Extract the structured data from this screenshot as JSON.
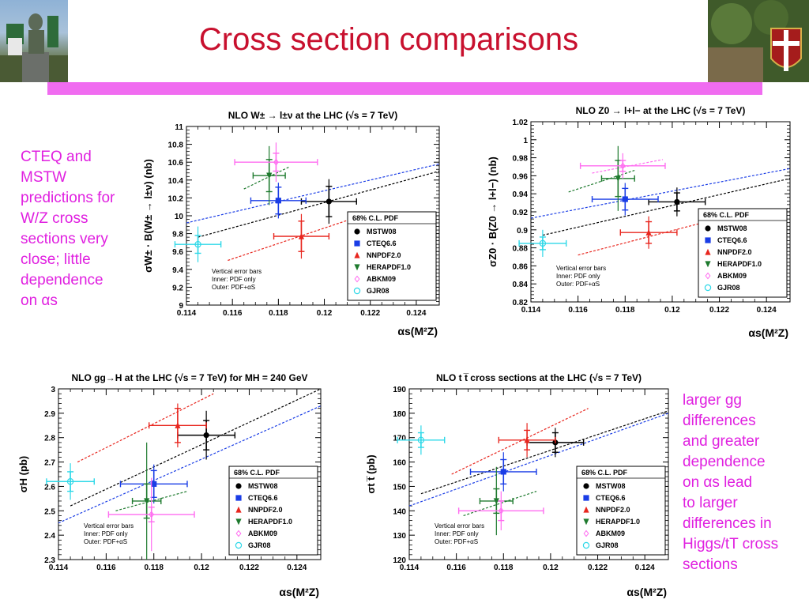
{
  "slide": {
    "title": "Cross section comparisons",
    "left_note": [
      "CTEQ and",
      "MSTW",
      "predictions for",
      "W/Z cross",
      "sections very",
      "close; little",
      "dependence",
      "on αs"
    ],
    "right_note": [
      "larger gg",
      "differences",
      "and greater",
      "dependence",
      "on αs lead",
      "to larger",
      "differences in",
      "Higgs/tT cross",
      "sections"
    ]
  },
  "colors": {
    "title": "#c8102e",
    "bar": "#f06cf0",
    "note": "#e020e0",
    "MSTW08": "#000000",
    "CTEQ6.6": "#1a3de6",
    "NNPDF2.0": "#e8261e",
    "HERAPDF1.0": "#1e7a2e",
    "ABKM09": "#ff6cf0",
    "GJR08": "#2ed8e8"
  },
  "chart_data": [
    {
      "type": "scatter",
      "title": "NLO W± → l±ν at the LHC (√s = 7 TeV)",
      "ylabel": "σW± · B(W± → l±ν)  (nb)",
      "xlabel": "αs(M²Z)",
      "xlim": [
        0.114,
        0.125
      ],
      "ylim": [
        9.0,
        11.0
      ],
      "xticks": [
        0.114,
        0.116,
        0.118,
        0.12,
        0.122,
        0.124
      ],
      "yticks": [
        9,
        9.2,
        9.4,
        9.6,
        9.8,
        10,
        10.2,
        10.4,
        10.6,
        10.8,
        11
      ],
      "legend_title": "68% C.L. PDF",
      "legend_position": "bottom-right",
      "note": [
        "Vertical error bars",
        "Inner: PDF only",
        "Outer: PDF+αS"
      ],
      "series": [
        {
          "name": "MSTW08",
          "x": 0.1202,
          "y": 10.16,
          "xerr": 0.0012,
          "yerr_in": 0.17,
          "yerr_out": 0.25,
          "line": [
            [
              0.1145,
              9.76
            ],
            [
              0.125,
              10.5
            ]
          ]
        },
        {
          "name": "CTEQ6.6",
          "x": 0.118,
          "y": 10.17,
          "xerr": 0.0012,
          "yerr_in": 0.15,
          "yerr_out": 0.2,
          "line": [
            [
              0.114,
              9.92
            ],
            [
              0.125,
              10.58
            ]
          ]
        },
        {
          "name": "NNPDF2.0",
          "x": 0.119,
          "y": 9.77,
          "xerr": 0.0012,
          "yerr_in": 0.17,
          "yerr_out": 0.25,
          "line": [
            [
              0.1158,
              9.5
            ],
            [
              0.1216,
              10.0
            ]
          ]
        },
        {
          "name": "HERAPDF1.0",
          "x": 0.1176,
          "y": 10.45,
          "xerr": 0.0007,
          "yerr_in": 0.18,
          "yerr_out": 0.33,
          "line": [
            [
              0.1165,
              10.3
            ],
            [
              0.1185,
              10.55
            ]
          ]
        },
        {
          "name": "ABKM09",
          "x": 0.1179,
          "y": 10.6,
          "xerr": 0.0018,
          "yerr_in": 0.1,
          "yerr_out": 0.22,
          "line": null
        },
        {
          "name": "GJR08",
          "x": 0.1145,
          "y": 9.68,
          "xerr": 0.001,
          "yerr_in": 0.1,
          "yerr_out": 0.2,
          "line": null
        }
      ]
    },
    {
      "type": "scatter",
      "title": "NLO Z0 → l+l− at the LHC (√s = 7 TeV)",
      "ylabel": "σZ0 · B(Z0 → l+l−)  (nb)",
      "xlabel": "αs(M²Z)",
      "xlim": [
        0.114,
        0.125
      ],
      "ylim": [
        0.82,
        1.02
      ],
      "xticks": [
        0.114,
        0.116,
        0.118,
        0.12,
        0.122,
        0.124
      ],
      "yticks": [
        0.82,
        0.84,
        0.86,
        0.88,
        0.9,
        0.92,
        0.94,
        0.96,
        0.98,
        1.0,
        1.02
      ],
      "legend_title": "68% C.L. PDF",
      "legend_position": "bottom-right",
      "note": [
        "Vertical error bars",
        "Inner: PDF only",
        "Outer: PDF+αS"
      ],
      "series": [
        {
          "name": "MSTW08",
          "x": 0.1202,
          "y": 0.931,
          "xerr": 0.0012,
          "yerr_in": 0.01,
          "yerr_out": 0.016,
          "line": [
            [
              0.1145,
              0.894
            ],
            [
              0.125,
              0.957
            ]
          ]
        },
        {
          "name": "CTEQ6.6",
          "x": 0.118,
          "y": 0.934,
          "xerr": 0.0014,
          "yerr_in": 0.012,
          "yerr_out": 0.018,
          "line": [
            [
              0.114,
              0.913
            ],
            [
              0.125,
              0.968
            ]
          ]
        },
        {
          "name": "NNPDF2.0",
          "x": 0.119,
          "y": 0.897,
          "xerr": 0.0012,
          "yerr_in": 0.012,
          "yerr_out": 0.018,
          "line": [
            [
              0.116,
              0.872
            ],
            [
              0.1216,
              0.91
            ]
          ]
        },
        {
          "name": "HERAPDF1.0",
          "x": 0.1177,
          "y": 0.957,
          "xerr": 0.0007,
          "yerr_in": 0.02,
          "yerr_out": 0.036,
          "line": [
            [
              0.1156,
              0.942
            ],
            [
              0.1184,
              0.966
            ]
          ]
        },
        {
          "name": "ABKM09",
          "x": 0.1179,
          "y": 0.971,
          "xerr": 0.0018,
          "yerr_in": 0.006,
          "yerr_out": 0.014,
          "line": [
            [
              0.1166,
              0.963
            ],
            [
              0.1196,
              0.978
            ]
          ]
        },
        {
          "name": "GJR08",
          "x": 0.1145,
          "y": 0.885,
          "xerr": 0.001,
          "yerr_in": 0.007,
          "yerr_out": 0.015,
          "line": null
        }
      ]
    },
    {
      "type": "scatter",
      "title": "NLO gg→H at the LHC (√s = 7 TeV) for MH = 240 GeV",
      "ylabel": "σH  (pb)",
      "xlabel": "αs(M²Z)",
      "xlim": [
        0.114,
        0.125
      ],
      "ylim": [
        2.3,
        3.0
      ],
      "xticks": [
        0.114,
        0.116,
        0.118,
        0.12,
        0.122,
        0.124
      ],
      "yticks": [
        2.3,
        2.4,
        2.5,
        2.6,
        2.7,
        2.8,
        2.9,
        3.0
      ],
      "legend_title": "68% C.L. PDF",
      "legend_position": "bottom-right",
      "note": [
        "Vertical error bars",
        "Inner: PDF only",
        "Outer: PDF+αS"
      ],
      "series": [
        {
          "name": "MSTW08",
          "x": 0.1202,
          "y": 2.81,
          "xerr": 0.0012,
          "yerr_in": 0.06,
          "yerr_out": 0.1,
          "line": [
            [
              0.1145,
              2.52
            ],
            [
              0.125,
              3.0
            ]
          ]
        },
        {
          "name": "CTEQ6.6",
          "x": 0.118,
          "y": 2.61,
          "xerr": 0.0014,
          "yerr_in": 0.055,
          "yerr_out": 0.08,
          "line": [
            [
              0.114,
              2.45
            ],
            [
              0.125,
              2.93
            ]
          ]
        },
        {
          "name": "NNPDF2.0",
          "x": 0.119,
          "y": 2.85,
          "xerr": 0.0012,
          "yerr_in": 0.07,
          "yerr_out": 0.09,
          "line": [
            [
              0.1148,
              2.7
            ],
            [
              0.1205,
              2.98
            ]
          ]
        },
        {
          "name": "HERAPDF1.0",
          "x": 0.1177,
          "y": 2.54,
          "xerr": 0.0006,
          "yerr_in": 0.07,
          "yerr_out": 0.24,
          "line": [
            [
              0.1164,
              2.5
            ],
            [
              0.1194,
              2.58
            ]
          ]
        },
        {
          "name": "ABKM09",
          "x": 0.1179,
          "y": 2.485,
          "xerr": 0.0018,
          "yerr_in": 0.03,
          "yerr_out": 0.15,
          "line": null
        },
        {
          "name": "GJR08",
          "x": 0.1145,
          "y": 2.62,
          "xerr": 0.001,
          "yerr_in": 0.04,
          "yerr_out": 0.075,
          "line": null
        }
      ]
    },
    {
      "type": "scatter",
      "title": "NLO t t̅ cross sections at the LHC (√s = 7 TeV)",
      "ylabel": "σt t̅  (pb)",
      "xlabel": "αs(M²Z)",
      "xlim": [
        0.114,
        0.125
      ],
      "ylim": [
        120,
        190
      ],
      "xticks": [
        0.114,
        0.116,
        0.118,
        0.12,
        0.122,
        0.124
      ],
      "yticks": [
        120,
        130,
        140,
        150,
        160,
        170,
        180,
        190
      ],
      "legend_title": "68% C.L. PDF",
      "legend_position": "bottom-right",
      "note": [
        "Vertical error bars",
        "Inner: PDF only",
        "Outer: PDF+αS"
      ],
      "series": [
        {
          "name": "MSTW08",
          "x": 0.1202,
          "y": 168,
          "xerr": 0.0012,
          "yerr_in": 4,
          "yerr_out": 6,
          "line": [
            [
              0.1145,
              147
            ],
            [
              0.125,
              181
            ]
          ]
        },
        {
          "name": "CTEQ6.6",
          "x": 0.118,
          "y": 156,
          "xerr": 0.0014,
          "yerr_in": 5,
          "yerr_out": 8,
          "line": [
            [
              0.114,
              142
            ],
            [
              0.125,
              180
            ]
          ]
        },
        {
          "name": "NNPDF2.0",
          "x": 0.119,
          "y": 169,
          "xerr": 0.0012,
          "yerr_in": 4,
          "yerr_out": 7,
          "line": [
            [
              0.1158,
              155
            ],
            [
              0.1216,
              182
            ]
          ]
        },
        {
          "name": "HERAPDF1.0",
          "x": 0.1177,
          "y": 144,
          "xerr": 0.0007,
          "yerr_in": 5,
          "yerr_out": 14,
          "line": [
            [
              0.1163,
              138
            ],
            [
              0.1194,
              148
            ]
          ]
        },
        {
          "name": "ABKM09",
          "x": 0.1179,
          "y": 140,
          "xerr": 0.0018,
          "yerr_in": 4,
          "yerr_out": 8,
          "line": null
        },
        {
          "name": "GJR08",
          "x": 0.1145,
          "y": 169,
          "xerr": 0.001,
          "yerr_in": 3,
          "yerr_out": 6,
          "line": null
        }
      ]
    }
  ]
}
